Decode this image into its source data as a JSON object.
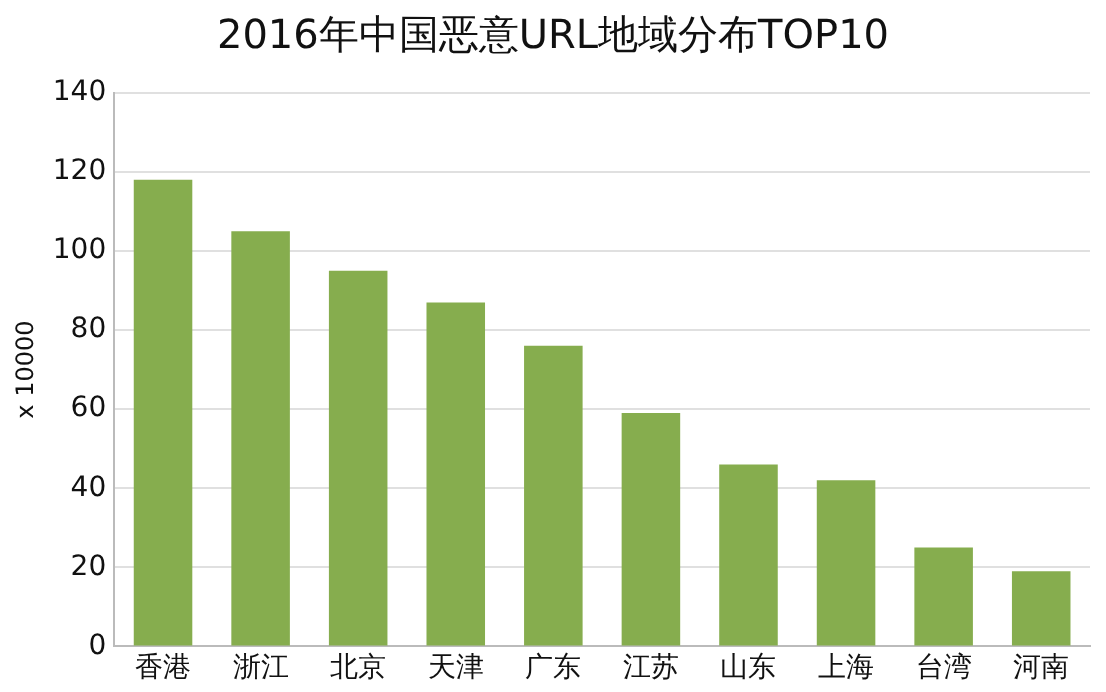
{
  "chart_data": {
    "type": "bar",
    "title": "2016年中国恶意URL地域分布TOP10",
    "ylabel": "x 10000",
    "categories": [
      "香港",
      "浙江",
      "北京",
      "天津",
      "广东",
      "江苏",
      "山东",
      "上海",
      "台湾",
      "河南"
    ],
    "values": [
      118,
      105,
      95,
      87,
      76,
      59,
      46,
      42,
      25,
      19
    ],
    "color": "#86ad4e",
    "ylim": [
      0,
      140
    ],
    "yticks": [
      0,
      20,
      40,
      60,
      80,
      100,
      120,
      140
    ],
    "grid": "y"
  }
}
